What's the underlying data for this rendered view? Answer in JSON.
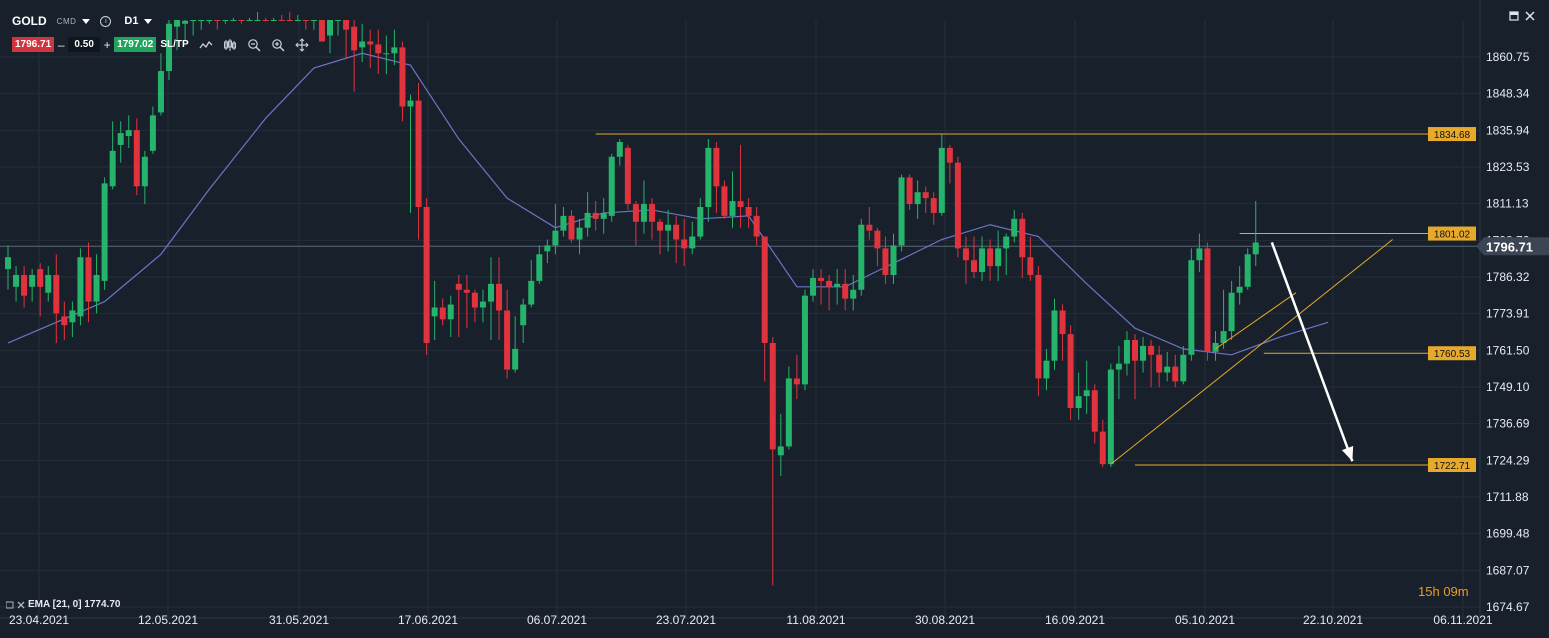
{
  "toolbar": {
    "symbol": "GOLD",
    "instrument_type": "CMD",
    "timeframe": "D1",
    "sell_price": "1796.71",
    "quantity": "0.50",
    "buy_price": "1797.02",
    "sltp_label": "SL/TP",
    "minus": "–",
    "plus": "+",
    "info_glyph": "i"
  },
  "icons": [
    "dropdown-arrow-icon",
    "info-icon",
    "line-chart-icon",
    "candlestick-icon",
    "zoom-out-icon",
    "zoom-in-icon",
    "move-icon",
    "restore-window-icon",
    "close-window-icon"
  ],
  "legend": {
    "indicator": "EMA [21, 0] 1774.70"
  },
  "timer": {
    "hours": "15",
    "h_unit": "h",
    "minutes": "09",
    "m_unit": "m"
  },
  "colors": {
    "background": "#18212b",
    "bull": "#26b36b",
    "bear": "#e0333e",
    "ema": "#6c74c4",
    "level": "#e6a92b",
    "grid": "#232d38",
    "current_price_tag": "#3b4553"
  },
  "chart_data": {
    "type": "candlestick",
    "y_ticks": [
      "1860.75",
      "1848.34",
      "1835.94",
      "1823.53",
      "1811.13",
      "1798.72",
      "1786.32",
      "1773.91",
      "1761.50",
      "1749.10",
      "1736.69",
      "1724.29",
      "1711.88",
      "1699.48",
      "1687.07",
      "1674.67"
    ],
    "y_range": [
      1674.67,
      1873.16
    ],
    "x_ticks": [
      "23.04.2021",
      "12.05.2021",
      "31.05.2021",
      "17.06.2021",
      "06.07.2021",
      "23.07.2021",
      "11.08.2021",
      "30.08.2021",
      "16.09.2021",
      "05.10.2021",
      "22.10.2021",
      "06.11.2021"
    ],
    "current_price": "1796.71",
    "horizontal_levels": [
      {
        "label": "1834.68",
        "price": 1834.68
      },
      {
        "label": "1801.02",
        "price": 1801.02
      },
      {
        "label": "1760.53",
        "price": 1760.53
      },
      {
        "label": "1722.71",
        "price": 1722.71
      }
    ],
    "candles": [
      [
        1789.0,
        1793.0,
        1782.0,
        1797.0
      ],
      [
        1783.0,
        1787.0,
        1778.0,
        1790.0
      ],
      [
        1787.0,
        1780.0,
        1776.0,
        1790.0
      ],
      [
        1783.0,
        1787.0,
        1778.0,
        1789.0
      ],
      [
        1789.0,
        1783.0,
        1773.0,
        1791.0
      ],
      [
        1781.0,
        1787.0,
        1778.0,
        1790.0
      ],
      [
        1787.0,
        1774.0,
        1764.0,
        1794.0
      ],
      [
        1773.0,
        1770.0,
        1765.0,
        1778.0
      ],
      [
        1771.0,
        1775.0,
        1766.0,
        1778.0
      ],
      [
        1773.0,
        1793.0,
        1770.0,
        1796.0
      ],
      [
        1793.0,
        1778.0,
        1771.0,
        1798.0
      ],
      [
        1778.0,
        1787.0,
        1774.0,
        1794.0
      ],
      [
        1785.0,
        1818.0,
        1782.0,
        1820.0
      ],
      [
        1817.0,
        1829.0,
        1816.0,
        1839.0
      ],
      [
        1831.0,
        1835.0,
        1825.0,
        1839.0
      ],
      [
        1834.0,
        1836.0,
        1830.0,
        1841.0
      ],
      [
        1836.0,
        1817.0,
        1814.0,
        1840.0
      ],
      [
        1817.0,
        1827.0,
        1811.0,
        1829.0
      ],
      [
        1829.0,
        1841.0,
        1828.0,
        1844.0
      ],
      [
        1842.0,
        1856.0,
        1841.0,
        1862.0
      ],
      [
        1856.0,
        1872.0,
        1853.0,
        1879.0
      ],
      [
        1871.0,
        1875.0,
        1863.0,
        1878.0
      ],
      [
        1872.0,
        1873.0,
        1866.0,
        1877.0
      ],
      [
        1874.0,
        1876.0,
        1868.0,
        1879.0
      ],
      [
        1876.0,
        1878.0,
        1870.0,
        1882.0
      ],
      [
        1878.0,
        1880.0,
        1872.0,
        1884.0
      ],
      [
        1880.0,
        1878.0,
        1870.0,
        1884.0
      ],
      [
        1878.0,
        1880.0,
        1872.0,
        1885.0
      ],
      [
        1880.0,
        1882.0,
        1874.0,
        1886.0
      ],
      [
        1882.0,
        1880.0,
        1872.0,
        1886.0
      ],
      [
        1880.0,
        1882.0,
        1874.0,
        1886.0
      ],
      [
        1882.0,
        1884.0,
        1876.0,
        1888.0
      ],
      [
        1884.0,
        1882.0,
        1874.0,
        1888.0
      ],
      [
        1882.0,
        1885.0,
        1874.0,
        1889.0
      ],
      [
        1885.0,
        1883.0,
        1875.0,
        1890.0
      ],
      [
        1883.0,
        1881.0,
        1876.0,
        1888.0
      ],
      [
        1881.0,
        1884.0,
        1875.0,
        1888.0
      ],
      [
        1884.0,
        1878.0,
        1870.0,
        1888.0
      ],
      [
        1878.0,
        1880.0,
        1870.0,
        1884.0
      ],
      [
        1880.0,
        1866.0,
        1866.0,
        1882.0
      ],
      [
        1868.0,
        1875.0,
        1862.0,
        1879.0
      ],
      [
        1874.0,
        1877.0,
        1868.0,
        1882.0
      ],
      [
        1879.0,
        1870.0,
        1860.0,
        1881.0
      ],
      [
        1871.0,
        1863.0,
        1849.0,
        1875.0
      ],
      [
        1864.0,
        1866.0,
        1859.0,
        1872.0
      ],
      [
        1866.0,
        1865.0,
        1857.0,
        1870.0
      ],
      [
        1865.0,
        1862.0,
        1855.0,
        1870.0
      ],
      [
        1862.0,
        1862.0,
        1855.0,
        1868.0
      ],
      [
        1862.0,
        1864.0,
        1858.0,
        1870.0
      ],
      [
        1864.0,
        1844.0,
        1839.0,
        1866.0
      ],
      [
        1844.0,
        1846.0,
        1808.0,
        1848.0
      ],
      [
        1846.0,
        1810.0,
        1799.0,
        1852.0
      ],
      [
        1810.0,
        1764.0,
        1760.0,
        1813.0
      ],
      [
        1773.0,
        1776.0,
        1765.0,
        1785.0
      ],
      [
        1776.0,
        1772.0,
        1770.0,
        1779.0
      ],
      [
        1772.0,
        1777.0,
        1766.0,
        1780.0
      ],
      [
        1784.0,
        1782.0,
        1766.0,
        1787.0
      ],
      [
        1782.0,
        1781.0,
        1769.0,
        1787.0
      ],
      [
        1781.0,
        1776.0,
        1771.0,
        1782.0
      ],
      [
        1776.0,
        1778.0,
        1771.0,
        1782.0
      ],
      [
        1778.0,
        1784.0,
        1765.0,
        1793.0
      ],
      [
        1784.0,
        1775.0,
        1765.0,
        1793.0
      ],
      [
        1775.0,
        1755.0,
        1752.0,
        1782.0
      ],
      [
        1755.0,
        1762.0,
        1754.0,
        1773.0
      ],
      [
        1770.0,
        1777.0,
        1764.0,
        1779.0
      ],
      [
        1777.0,
        1785.0,
        1776.0,
        1792.0
      ],
      [
        1785.0,
        1794.0,
        1784.0,
        1797.0
      ],
      [
        1795.0,
        1797.0,
        1791.0,
        1799.0
      ],
      [
        1797.0,
        1802.0,
        1794.0,
        1811.0
      ],
      [
        1802.0,
        1807.0,
        1800.0,
        1810.0
      ],
      [
        1807.0,
        1799.0,
        1798.0,
        1809.0
      ],
      [
        1799.0,
        1803.0,
        1794.0,
        1806.0
      ],
      [
        1803.0,
        1808.0,
        1800.0,
        1815.0
      ],
      [
        1808.0,
        1806.0,
        1802.0,
        1812.0
      ],
      [
        1806.0,
        1808.0,
        1801.0,
        1813.0
      ],
      [
        1807.0,
        1827.0,
        1805.0,
        1828.0
      ],
      [
        1827.0,
        1832.0,
        1824.0,
        1833.0
      ],
      [
        1830.0,
        1811.0,
        1809.0,
        1831.0
      ],
      [
        1811.0,
        1805.0,
        1797.0,
        1812.0
      ],
      [
        1805.0,
        1811.0,
        1801.0,
        1819.0
      ],
      [
        1811.0,
        1805.0,
        1799.0,
        1813.0
      ],
      [
        1805.0,
        1802.0,
        1794.0,
        1806.0
      ],
      [
        1802.0,
        1804.0,
        1795.0,
        1809.0
      ],
      [
        1804.0,
        1799.0,
        1791.0,
        1807.0
      ],
      [
        1799.0,
        1796.0,
        1790.0,
        1806.0
      ],
      [
        1796.0,
        1800.0,
        1794.0,
        1805.0
      ],
      [
        1800.0,
        1810.0,
        1799.0,
        1813.0
      ],
      [
        1810.0,
        1830.0,
        1805.0,
        1833.0
      ],
      [
        1830.0,
        1817.0,
        1808.0,
        1832.0
      ],
      [
        1817.0,
        1807.0,
        1806.0,
        1819.0
      ],
      [
        1807.0,
        1812.0,
        1803.0,
        1822.0
      ],
      [
        1812.0,
        1810.0,
        1803.0,
        1831.0
      ],
      [
        1810.0,
        1807.0,
        1803.0,
        1813.0
      ],
      [
        1807.0,
        1800.0,
        1797.0,
        1810.0
      ],
      [
        1800.0,
        1764.0,
        1751.0,
        1800.0
      ],
      [
        1764.0,
        1728.0,
        1682.0,
        1766.0
      ],
      [
        1726.0,
        1729.0,
        1719.0,
        1740.0
      ],
      [
        1729.0,
        1752.0,
        1728.0,
        1756.0
      ],
      [
        1752.0,
        1750.0,
        1745.0,
        1760.0
      ],
      [
        1750.0,
        1780.0,
        1748.0,
        1782.0
      ],
      [
        1780.0,
        1786.0,
        1778.0,
        1789.0
      ],
      [
        1786.0,
        1785.0,
        1777.0,
        1789.0
      ],
      [
        1785.0,
        1783.0,
        1775.0,
        1787.0
      ],
      [
        1783.0,
        1784.0,
        1777.0,
        1789.0
      ],
      [
        1784.0,
        1779.0,
        1775.0,
        1789.0
      ],
      [
        1779.0,
        1782.0,
        1775.0,
        1787.0
      ],
      [
        1782.0,
        1804.0,
        1780.0,
        1806.0
      ],
      [
        1804.0,
        1802.0,
        1799.0,
        1810.0
      ],
      [
        1802.0,
        1796.0,
        1790.0,
        1803.0
      ],
      [
        1796.0,
        1787.0,
        1784.0,
        1800.0
      ],
      [
        1787.0,
        1797.0,
        1784.0,
        1801.0
      ],
      [
        1797.0,
        1820.0,
        1795.0,
        1821.0
      ],
      [
        1820.0,
        1811.0,
        1809.0,
        1821.0
      ],
      [
        1811.0,
        1815.0,
        1806.0,
        1819.0
      ],
      [
        1815.0,
        1813.0,
        1808.0,
        1817.0
      ],
      [
        1813.0,
        1808.0,
        1804.0,
        1815.0
      ],
      [
        1808.0,
        1830.0,
        1807.0,
        1835.0
      ],
      [
        1830.0,
        1825.0,
        1818.0,
        1831.0
      ],
      [
        1825.0,
        1796.0,
        1793.0,
        1827.0
      ],
      [
        1796.0,
        1792.0,
        1784.0,
        1800.0
      ],
      [
        1792.0,
        1788.0,
        1786.0,
        1800.0
      ],
      [
        1788.0,
        1796.0,
        1785.0,
        1800.0
      ],
      [
        1796.0,
        1790.0,
        1785.0,
        1799.0
      ],
      [
        1790.0,
        1796.0,
        1785.0,
        1802.0
      ],
      [
        1796.0,
        1800.0,
        1787.0,
        1801.0
      ],
      [
        1800.0,
        1806.0,
        1798.0,
        1809.0
      ],
      [
        1806.0,
        1793.0,
        1786.0,
        1808.0
      ],
      [
        1793.0,
        1787.0,
        1785.0,
        1800.0
      ],
      [
        1787.0,
        1752.0,
        1746.0,
        1790.0
      ],
      [
        1752.0,
        1758.0,
        1748.0,
        1762.0
      ],
      [
        1758.0,
        1775.0,
        1755.0,
        1779.0
      ],
      [
        1775.0,
        1767.0,
        1758.0,
        1777.0
      ],
      [
        1767.0,
        1742.0,
        1738.0,
        1770.0
      ],
      [
        1742.0,
        1746.0,
        1738.0,
        1754.0
      ],
      [
        1746.0,
        1748.0,
        1740.0,
        1758.0
      ],
      [
        1748.0,
        1734.0,
        1730.0,
        1750.0
      ],
      [
        1734.0,
        1723.0,
        1722.0,
        1738.0
      ],
      [
        1723.0,
        1755.0,
        1722.0,
        1757.0
      ],
      [
        1755.0,
        1757.0,
        1745.0,
        1763.0
      ],
      [
        1757.0,
        1765.0,
        1753.0,
        1768.0
      ],
      [
        1765.0,
        1758.0,
        1745.0,
        1767.0
      ],
      [
        1758.0,
        1763.0,
        1754.0,
        1766.0
      ],
      [
        1763.0,
        1760.0,
        1749.0,
        1765.0
      ],
      [
        1760.0,
        1754.0,
        1749.0,
        1763.0
      ],
      [
        1754.0,
        1756.0,
        1751.0,
        1761.0
      ],
      [
        1756.0,
        1751.0,
        1749.0,
        1760.0
      ],
      [
        1751.0,
        1760.0,
        1750.0,
        1763.0
      ],
      [
        1760.0,
        1792.0,
        1758.0,
        1796.0
      ],
      [
        1792.0,
        1796.0,
        1788.0,
        1801.0
      ],
      [
        1796.0,
        1761.0,
        1758.0,
        1798.0
      ],
      [
        1761.0,
        1764.0,
        1758.0,
        1768.0
      ],
      [
        1764.0,
        1768.0,
        1762.0,
        1782.0
      ],
      [
        1768.0,
        1781.0,
        1765.0,
        1785.0
      ],
      [
        1781.0,
        1783.0,
        1777.0,
        1790.0
      ],
      [
        1783.0,
        1794.0,
        1782.0,
        1796.0
      ],
      [
        1794.0,
        1798.0,
        1790.0,
        1812.0
      ]
    ],
    "ema": [
      [
        0,
        1764.0
      ],
      [
        6,
        1771.0
      ],
      [
        12,
        1778.0
      ],
      [
        19,
        1794.0
      ],
      [
        25,
        1816.0
      ],
      [
        32,
        1840.0
      ],
      [
        38,
        1857.0
      ],
      [
        44,
        1862.0
      ],
      [
        50,
        1858.0
      ],
      [
        56,
        1833.0
      ],
      [
        62,
        1813.0
      ],
      [
        68,
        1803.0
      ],
      [
        74,
        1808.0
      ],
      [
        80,
        1809.0
      ],
      [
        86,
        1806.0
      ],
      [
        92,
        1807.0
      ],
      [
        98,
        1783.0
      ],
      [
        104,
        1783.0
      ],
      [
        110,
        1791.0
      ],
      [
        116,
        1799.0
      ],
      [
        122,
        1804.0
      ],
      [
        128,
        1800.0
      ],
      [
        134,
        1784.0
      ],
      [
        140,
        1769.0
      ],
      [
        146,
        1762.0
      ],
      [
        152,
        1760.0
      ],
      [
        158,
        1766.0
      ],
      [
        164,
        1771.0
      ]
    ],
    "trend_lines": [
      {
        "from": [
          137,
          1723.0
        ],
        "to": [
          172,
          1799.0
        ]
      },
      {
        "from": [
          150,
          1762.0
        ],
        "to": [
          160,
          1781.0
        ]
      }
    ],
    "arrow": {
      "from": [
        157,
        1798.0
      ],
      "to": [
        167,
        1724.0
      ]
    }
  }
}
